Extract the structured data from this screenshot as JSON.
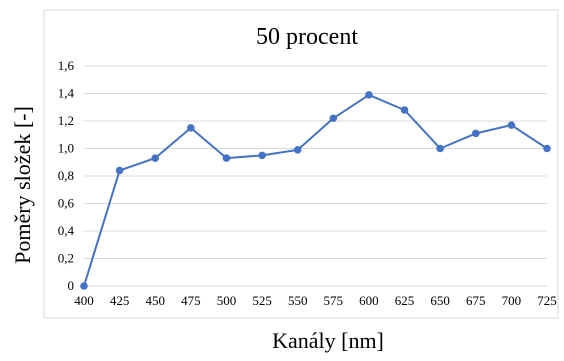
{
  "chart_data": {
    "type": "line",
    "title": "50 procent",
    "xlabel": "Kanály [nm]",
    "ylabel": "Poměry složek [-]",
    "x": [
      "400",
      "425",
      "450",
      "475",
      "500",
      "525",
      "550",
      "575",
      "600",
      "625",
      "650",
      "675",
      "700",
      "725"
    ],
    "series": [
      {
        "name": "",
        "values": [
          0.0,
          0.84,
          0.93,
          1.15,
          0.93,
          0.95,
          0.99,
          1.22,
          1.39,
          1.28,
          1.0,
          1.11,
          1.17,
          1.0
        ]
      }
    ],
    "yticks": [
      "0",
      "0,2",
      "0,4",
      "0,6",
      "0,8",
      "1,0",
      "1,2",
      "1,4",
      "1,6"
    ],
    "ylim": [
      0,
      1.6
    ],
    "grid": true,
    "legend": "none",
    "colors": {
      "series": "#4472C4",
      "grid": "#d9d9d9",
      "frame": "#d9d9d9"
    }
  }
}
